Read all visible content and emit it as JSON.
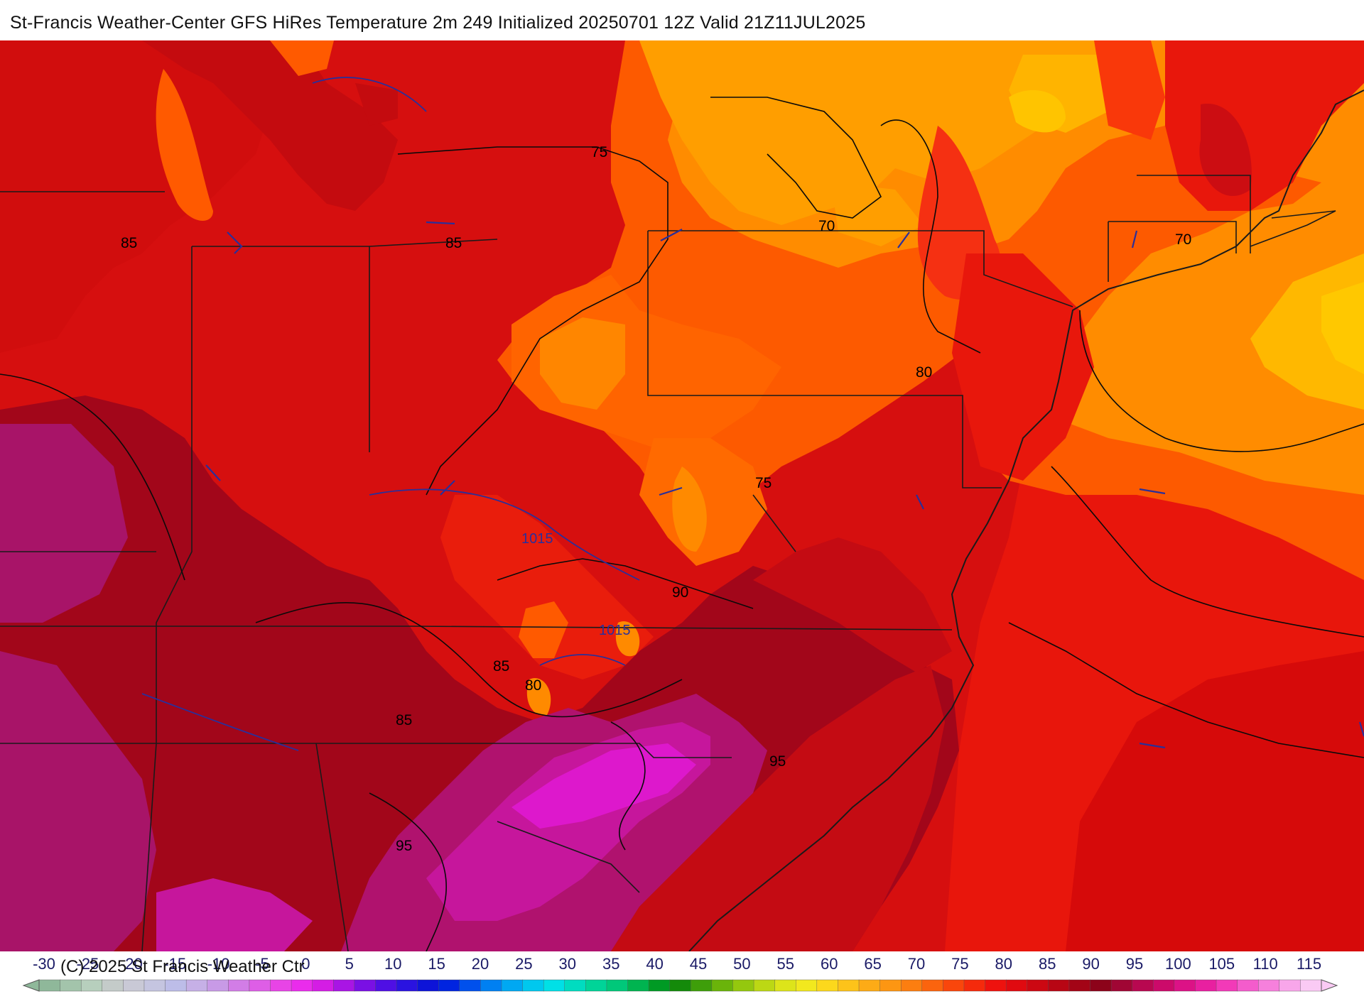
{
  "title": "St-Francis Weather-Center GFS HiRes Temperature 2m  249 Initialized 20250701 12Z Valid 21Z11JUL2025",
  "copyright": "(C) 2025 St Francis Weather Ctr",
  "contour_labels": [
    "75",
    "85",
    "85",
    "70",
    "70",
    "80",
    "75",
    "1015",
    "90",
    "1015",
    "85",
    "80",
    "85",
    "95",
    "95"
  ],
  "colorbar": {
    "ticks": [
      "-30",
      "-25",
      "-20",
      "-15",
      "-10",
      "-5",
      "0",
      "5",
      "10",
      "15",
      "20",
      "25",
      "30",
      "35",
      "40",
      "45",
      "50",
      "55",
      "60",
      "65",
      "70",
      "75",
      "80",
      "85",
      "90",
      "95",
      "100",
      "105",
      "110",
      "115"
    ],
    "colors": [
      "#8fb89a",
      "#a3c4ab",
      "#b7cfbd",
      "#c4cbc9",
      "#c9c9d6",
      "#c5c5e0",
      "#bdbde8",
      "#c6b0e6",
      "#c89ae6",
      "#d27de6",
      "#de5ee6",
      "#e844e6",
      "#ea2cec",
      "#d41de4",
      "#a915e4",
      "#7a10e4",
      "#4f0fe4",
      "#2a13e0",
      "#0d14d8",
      "#0024e0",
      "#0050ec",
      "#0080f2",
      "#00a8f2",
      "#00c8ee",
      "#00e0e6",
      "#00dcc0",
      "#00d498",
      "#00c87a",
      "#00b450",
      "#009a24",
      "#148a0a",
      "#3e9e0a",
      "#6ab40a",
      "#94c80e",
      "#bcd814",
      "#dde41a",
      "#f2e81e",
      "#fcd81c",
      "#fdc31a",
      "#fdab16",
      "#fd9612",
      "#fc7e10",
      "#fb640e",
      "#f9460c",
      "#f52a0c",
      "#ee120e",
      "#e00a10",
      "#cc0812",
      "#b80614",
      "#a30416",
      "#8c031a",
      "#a00634",
      "#b80850",
      "#cc0a6a",
      "#dc1286",
      "#e820a0",
      "#f23ab8",
      "#f45ccc",
      "#f680dc",
      "#f8a6ea",
      "#facaf4"
    ]
  },
  "legend_colors": {
    "t95_plus": "#dd18cc",
    "t95": "#a81468",
    "t90": "#a2061a",
    "t85": "#cd0d0d",
    "t80": "#e91d0c",
    "t75": "#ff5a00",
    "t70": "#ff8c00",
    "t65": "#ffc000"
  }
}
